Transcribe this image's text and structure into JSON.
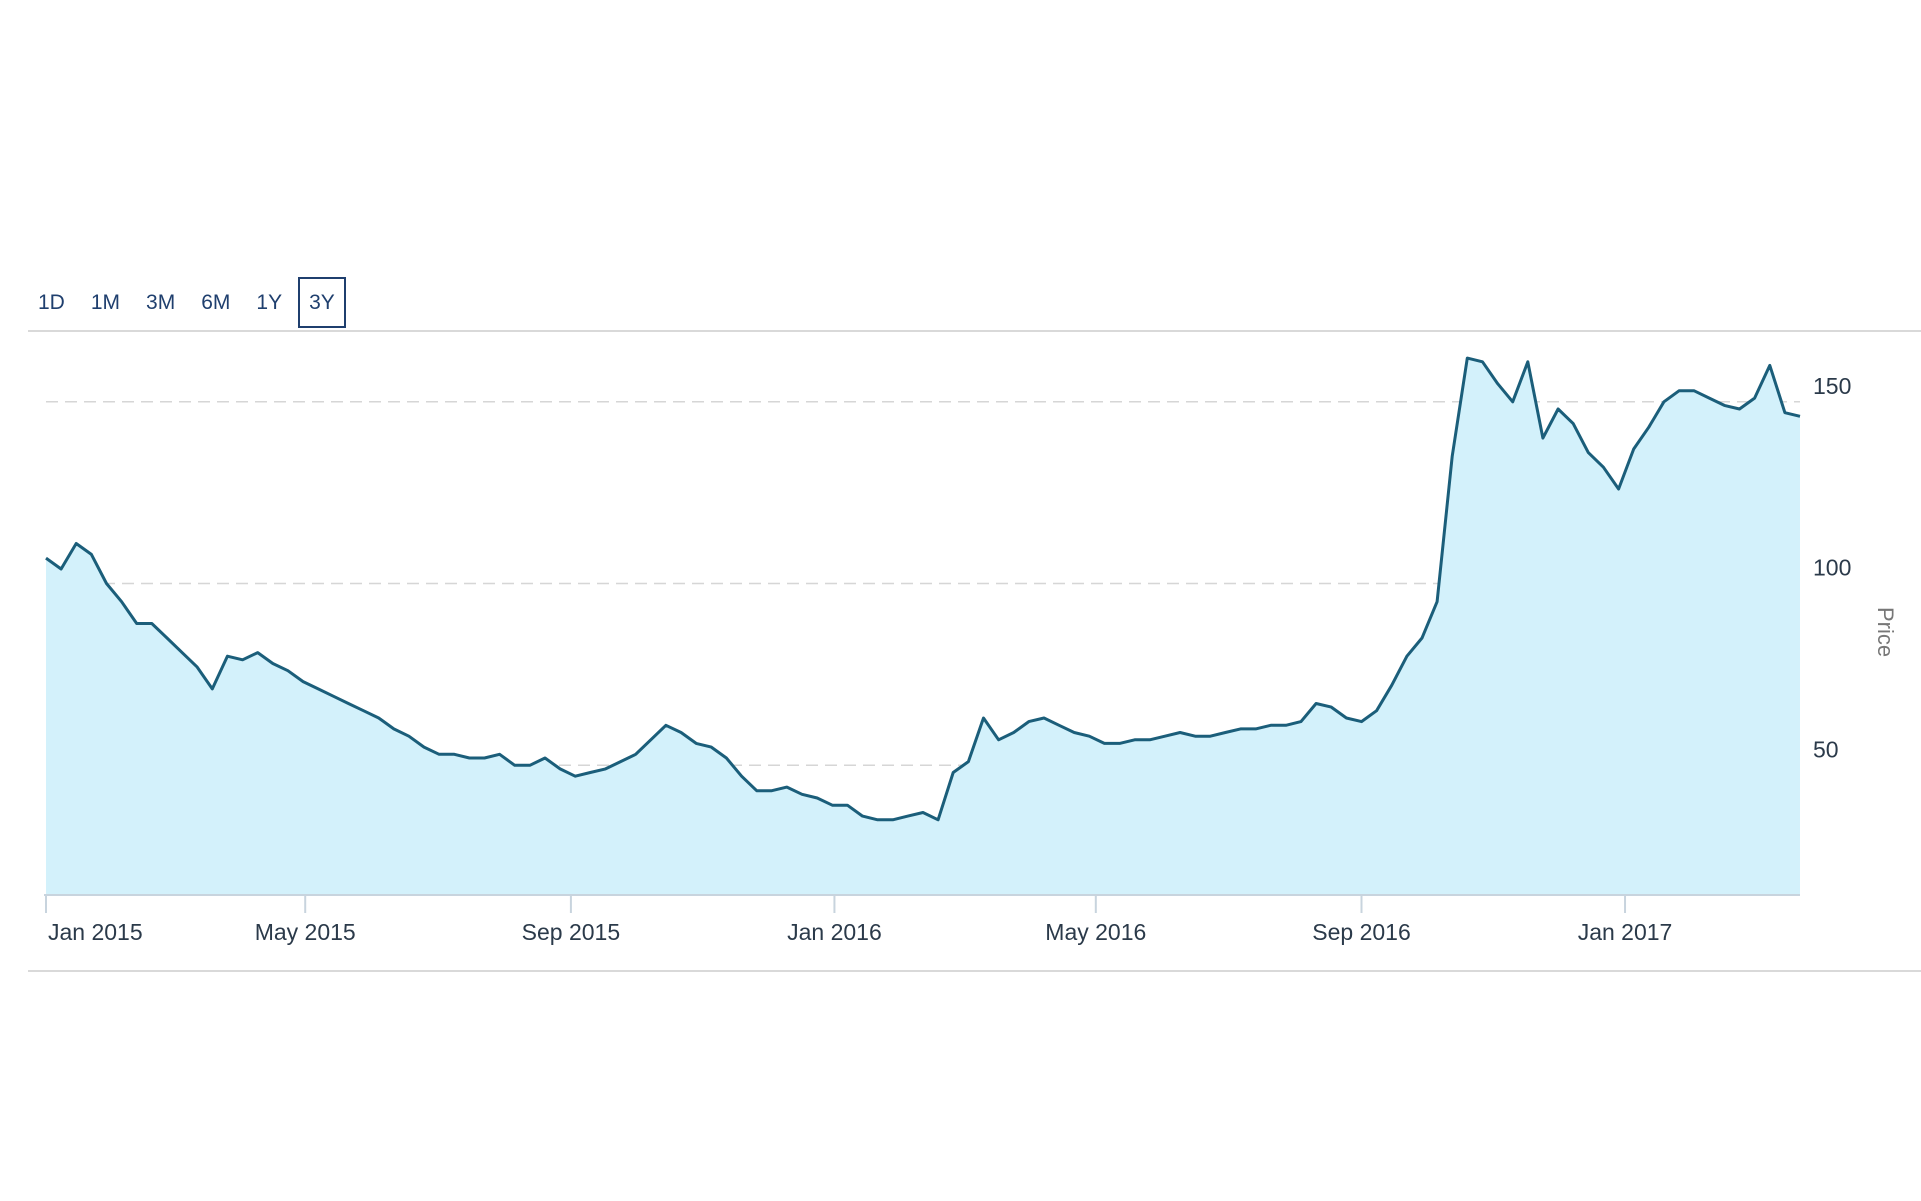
{
  "range_selector": {
    "buttons": [
      {
        "label": "1D",
        "active": false
      },
      {
        "label": "1M",
        "active": false
      },
      {
        "label": "3M",
        "active": false
      },
      {
        "label": "6M",
        "active": false
      },
      {
        "label": "1Y",
        "active": false
      },
      {
        "label": "3Y",
        "active": true
      }
    ]
  },
  "colors": {
    "line": "#1b5e7a",
    "area": "#d3f1fb",
    "grid": "#d6d6d6",
    "active_border": "#1f3f6e"
  },
  "chart_data": {
    "type": "area",
    "title": "",
    "xlabel": "",
    "ylabel": "Price",
    "ylim": [
      30,
      165
    ],
    "yticks": [
      50,
      100,
      150
    ],
    "grid": "horizontal dashed",
    "xticks": [
      {
        "date": "2015-01-01",
        "label": "Jan 2015"
      },
      {
        "date": "2015-05-01",
        "label": "May 2015"
      },
      {
        "date": "2015-09-01",
        "label": "Sep 2015"
      },
      {
        "date": "2016-01-01",
        "label": "Jan 2016"
      },
      {
        "date": "2016-05-01",
        "label": "May 2016"
      },
      {
        "date": "2016-09-01",
        "label": "Sep 2016"
      },
      {
        "date": "2017-01-01",
        "label": "Jan 2017"
      }
    ],
    "series": [
      {
        "x": [
          "2015-01-01",
          "2015-01-08",
          "2015-01-15",
          "2015-01-22",
          "2015-01-29",
          "2015-02-05",
          "2015-02-12",
          "2015-02-19",
          "2015-02-26",
          "2015-03-05",
          "2015-03-12",
          "2015-03-19",
          "2015-03-26",
          "2015-04-02",
          "2015-04-09",
          "2015-04-16",
          "2015-04-23",
          "2015-04-30",
          "2015-05-07",
          "2015-05-14",
          "2015-05-21",
          "2015-05-28",
          "2015-06-04",
          "2015-06-11",
          "2015-06-18",
          "2015-06-25",
          "2015-07-02",
          "2015-07-09",
          "2015-07-16",
          "2015-07-23",
          "2015-07-30",
          "2015-08-06",
          "2015-08-13",
          "2015-08-20",
          "2015-08-27",
          "2015-09-03",
          "2015-09-10",
          "2015-09-17",
          "2015-09-24",
          "2015-10-01",
          "2015-10-08",
          "2015-10-15",
          "2015-10-22",
          "2015-10-29",
          "2015-11-05",
          "2015-11-12",
          "2015-11-19",
          "2015-11-26",
          "2015-12-03",
          "2015-12-10",
          "2015-12-17",
          "2015-12-24",
          "2015-12-31",
          "2016-01-07",
          "2016-01-14",
          "2016-01-21",
          "2016-01-28",
          "2016-02-04",
          "2016-02-11",
          "2016-02-18",
          "2016-02-25",
          "2016-03-03",
          "2016-03-10",
          "2016-03-17",
          "2016-03-24",
          "2016-03-31",
          "2016-04-07",
          "2016-04-14",
          "2016-04-21",
          "2016-04-28",
          "2016-05-05",
          "2016-05-12",
          "2016-05-19",
          "2016-05-26",
          "2016-06-02",
          "2016-06-09",
          "2016-06-16",
          "2016-06-23",
          "2016-06-30",
          "2016-07-07",
          "2016-07-14",
          "2016-07-21",
          "2016-07-28",
          "2016-08-04",
          "2016-08-11",
          "2016-08-18",
          "2016-08-25",
          "2016-09-01",
          "2016-09-08",
          "2016-09-15",
          "2016-09-22",
          "2016-09-29",
          "2016-10-06",
          "2016-10-13",
          "2016-10-20",
          "2016-10-27",
          "2016-11-03",
          "2016-11-10",
          "2016-11-17",
          "2016-11-24",
          "2016-12-01",
          "2016-12-08",
          "2016-12-15",
          "2016-12-22",
          "2016-12-29",
          "2017-01-05",
          "2017-01-12",
          "2017-01-19",
          "2017-01-26",
          "2017-02-02",
          "2017-02-09",
          "2017-02-16",
          "2017-02-23",
          "2017-03-02",
          "2017-03-09",
          "2017-03-16",
          "2017-03-23"
        ],
        "y": [
          107,
          104,
          111,
          108,
          100,
          95,
          89,
          89,
          85,
          81,
          77,
          71,
          80,
          79,
          81,
          78,
          76,
          73,
          71,
          69,
          67,
          65,
          63,
          60,
          58,
          55,
          53,
          53,
          52,
          52,
          53,
          50,
          50,
          52,
          49,
          47,
          48,
          49,
          51,
          53,
          57,
          61,
          59,
          56,
          55,
          52,
          47,
          43,
          43,
          44,
          42,
          41,
          39,
          39,
          36,
          35,
          35,
          36,
          37,
          35,
          48,
          51,
          63,
          57,
          59,
          62,
          63,
          61,
          59,
          58,
          56,
          56,
          57,
          57,
          58,
          59,
          58,
          58,
          59,
          60,
          60,
          61,
          61,
          62,
          67,
          66,
          63,
          62,
          65,
          72,
          80,
          85,
          95,
          135,
          162,
          161,
          155,
          150,
          161,
          140,
          148,
          144,
          136,
          132,
          126,
          137,
          143,
          150,
          153,
          153,
          151,
          149,
          148,
          151,
          160,
          147,
          146
        ]
      }
    ]
  }
}
